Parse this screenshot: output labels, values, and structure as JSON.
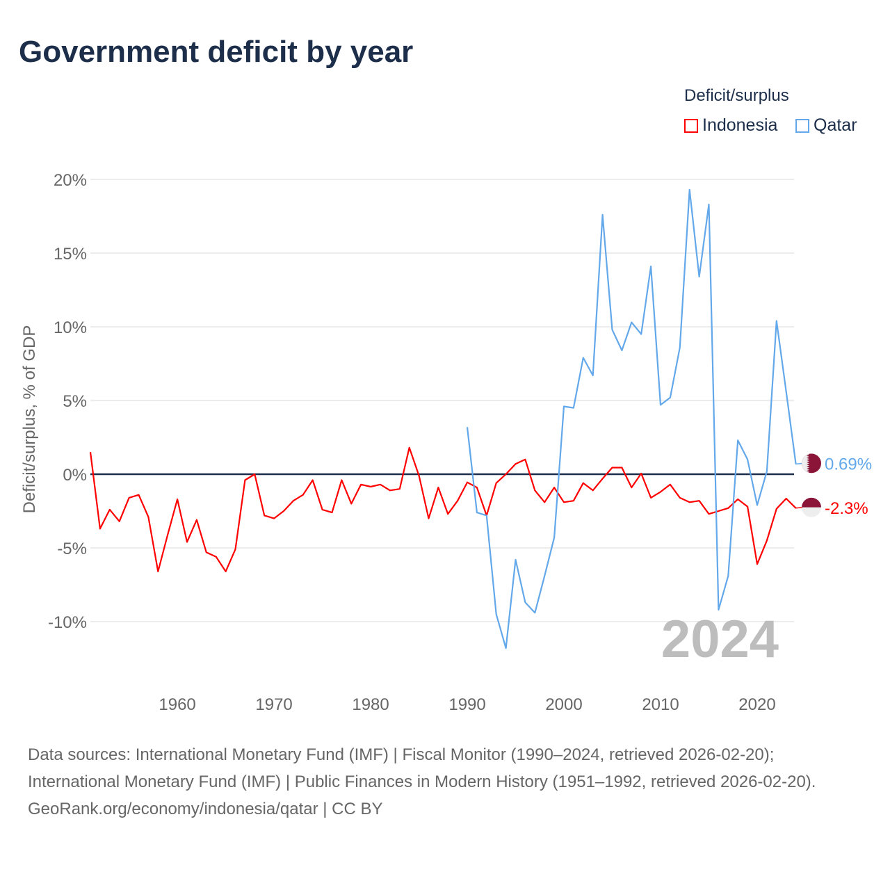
{
  "title": "Government deficit by year",
  "legend": {
    "title": "Deficit/surplus",
    "entries": [
      "Indonesia",
      "Qatar"
    ]
  },
  "sources": {
    "line1": "Data sources: International Monetary Fund (IMF) | Fiscal Monitor (1990–2024, retrieved 2026-02-20); International Monetary Fund (IMF) | Public Finances in Modern History (1951–1992, retrieved 2026-02-20).",
    "line2": "GeoRank.org/economy/indonesia/qatar | CC BY"
  },
  "chart_data": {
    "type": "line",
    "title": "Government deficit by year",
    "ylabel": "Deficit/surplus, % of GDP",
    "xlabel": "",
    "xlim": [
      1951,
      2024
    ],
    "ylim": [
      -14,
      20
    ],
    "xticks": [
      1960,
      1970,
      1980,
      1990,
      2000,
      2010,
      2020
    ],
    "yticks": [
      -10,
      -5,
      0,
      5,
      10,
      15,
      20
    ],
    "ytick_labels": [
      "-10%",
      "-5%",
      "0%",
      "5%",
      "10%",
      "15%",
      "20%"
    ],
    "grid": true,
    "legend_position": "top-right",
    "year_watermark": "2024",
    "series": [
      {
        "name": "Indonesia",
        "color": "#ff0000",
        "end_label": "-2.3%",
        "x_start": 1951,
        "values": [
          1.5,
          -3.7,
          -2.4,
          -3.2,
          -1.6,
          -1.4,
          -2.9,
          -6.6,
          -4.1,
          -1.7,
          -4.6,
          -3.1,
          -5.3,
          -5.6,
          -6.6,
          -5.1,
          -0.4,
          0,
          -2.8,
          -3.0,
          -2.5,
          -1.8,
          -1.4,
          -0.4,
          -2.4,
          -2.6,
          -0.4,
          -2.0,
          -0.7,
          -0.85,
          -0.7,
          -1.1,
          -1.0,
          1.8,
          -0.1,
          -3.0,
          -0.9,
          -2.7,
          -1.8,
          -0.55,
          -0.9,
          -2.8,
          -0.6,
          0,
          0.7,
          1.0,
          -1.1,
          -1.9,
          -0.9,
          -1.9,
          -1.8,
          -0.6,
          -1.1,
          -0.3,
          0.45,
          0.45,
          -0.9,
          0.05,
          -1.6,
          -1.2,
          -0.7,
          -1.6,
          -1.9,
          -1.8,
          -2.7,
          -2.5,
          -2.3,
          -1.7,
          -2.2,
          -6.1,
          -4.5,
          -2.35,
          -1.65,
          -2.3
        ]
      },
      {
        "name": "Qatar",
        "color": "#63a8ea",
        "end_label": "0.69%",
        "x_start": 1990,
        "values": [
          3.2,
          -2.6,
          -2.8,
          -9.5,
          -11.8,
          -5.8,
          -8.7,
          -9.4,
          -6.9,
          -4.3,
          4.6,
          4.5,
          7.9,
          6.7,
          17.6,
          9.8,
          8.4,
          10.3,
          9.5,
          14.1,
          4.7,
          5.2,
          8.6,
          19.3,
          13.4,
          18.3,
          -9.2,
          -6.9,
          2.3,
          1.0,
          -2.1,
          0.2,
          10.4,
          5.6,
          0.69
        ]
      }
    ]
  }
}
